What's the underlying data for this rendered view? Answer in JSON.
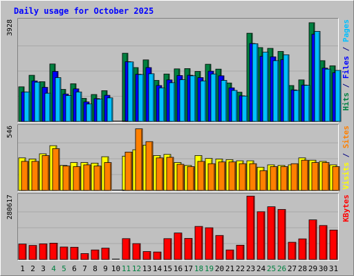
{
  "chart_data": {
    "type": "bar",
    "title": "Daily usage for October 2025",
    "categories": [
      "1",
      "2",
      "3",
      "4",
      "5",
      "6",
      "7",
      "8",
      "9",
      "10",
      "11",
      "12",
      "13",
      "14",
      "15",
      "16",
      "17",
      "18",
      "19",
      "20",
      "21",
      "22",
      "23",
      "24",
      "25",
      "26",
      "27",
      "28",
      "29",
      "30",
      "31"
    ],
    "weekend_days": [
      "4",
      "5",
      "11",
      "12",
      "18",
      "19",
      "25",
      "26"
    ],
    "panels": [
      {
        "id": "top",
        "ymax": 3928,
        "ymax_label": "3928",
        "legend": [
          {
            "text": "Hits",
            "color": "#008040"
          },
          {
            "text": " / ",
            "color": "#000080"
          },
          {
            "text": "Files",
            "color": "#0000ff"
          },
          {
            "text": " / ",
            "color": "#000080"
          },
          {
            "text": "Pages",
            "color": "#00c0ff"
          }
        ],
        "series": [
          {
            "name": "Hits",
            "color": "#008040",
            "values": [
              1350,
              1800,
              1550,
              2240,
              1250,
              1470,
              900,
              1050,
              1200,
              0,
              2660,
              2100,
              2400,
              1600,
              1850,
              2050,
              2060,
              1950,
              2230,
              2040,
              1500,
              1140,
              3440,
              2880,
              2850,
              2730,
              1400,
              1620,
              3850,
              2370,
              2170
            ]
          },
          {
            "name": "Files",
            "color": "#0000ff",
            "values": [
              1150,
              1580,
              1330,
              1950,
              1070,
              1270,
              760,
              890,
              1020,
              0,
              2330,
              1840,
              2100,
              1400,
              1620,
              1790,
              1800,
              1710,
              1960,
              1780,
              1310,
              1000,
              3040,
              2540,
              2520,
              2410,
              1230,
              1420,
              3400,
              2080,
              1900
            ]
          },
          {
            "name": "Pages",
            "color": "#00c0ff",
            "values": [
              1150,
              1530,
              1100,
              1710,
              1010,
              1150,
              680,
              870,
              920,
              0,
              2320,
              1830,
              1860,
              1310,
              1510,
              1630,
              1780,
              1580,
              1850,
              1600,
              1210,
              990,
              3030,
              2700,
              2370,
              2600,
              1210,
              1410,
              3510,
              2040,
              1990
            ]
          }
        ]
      },
      {
        "id": "middle",
        "ymax": 546,
        "ymax_label": "546",
        "legend": [
          {
            "text": "Visits",
            "color": "#ffff00"
          },
          {
            "text": " / ",
            "color": "#000080"
          },
          {
            "text": "Sites",
            "color": "#ff8000"
          }
        ],
        "series": [
          {
            "name": "Visits",
            "color": "#ffff00",
            "values": [
              280,
              270,
              315,
              385,
              215,
              240,
              240,
              235,
              290,
              0,
              295,
              350,
              390,
              300,
              310,
              240,
              215,
              300,
              275,
              270,
              265,
              255,
              255,
              200,
              220,
              215,
              220,
              280,
              260,
              250,
              220
            ]
          },
          {
            "name": "Sites",
            "color": "#ff8000",
            "values": [
              250,
              250,
              300,
              360,
              210,
              205,
              220,
              210,
              240,
              0,
              330,
              530,
              420,
              280,
              285,
              225,
              205,
              250,
              230,
              245,
              245,
              230,
              230,
              170,
              205,
              205,
              230,
              260,
              240,
              240,
              205
            ]
          }
        ]
      },
      {
        "id": "bottom",
        "ymax": 280617,
        "ymax_label": "280617",
        "legend": [
          {
            "text": "KBytes",
            "color": "#ff0000"
          }
        ],
        "series": [
          {
            "name": "KBytes",
            "color": "#ff0000",
            "values": [
              68000,
              62000,
              69000,
              72000,
              55000,
              54000,
              26000,
              42000,
              50000,
              0,
              92000,
              70000,
              35000,
              33000,
              92000,
              117000,
              93000,
              146000,
              140000,
              106000,
              42000,
              63000,
              280000,
              211000,
              233000,
              221000,
              76000,
              91000,
              175000,
              150000,
              130000
            ]
          }
        ]
      }
    ]
  }
}
